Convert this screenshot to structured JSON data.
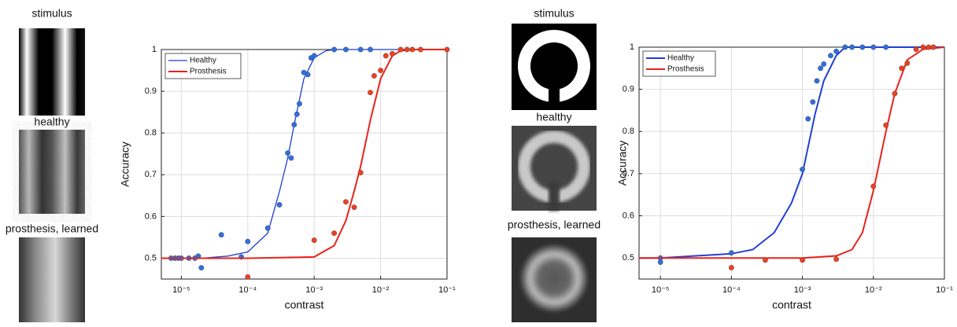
{
  "panels": [
    {
      "labels": [
        "stimulus",
        "healthy",
        "prosthesis, learned"
      ]
    },
    {
      "labels": [
        "stimulus",
        "healthy",
        "prosthesis, learned"
      ]
    }
  ],
  "chart_data": [
    {
      "type": "line",
      "xlabel": "contrast",
      "ylabel": "Accuracy",
      "xscale": "log",
      "xlim": [
        5e-06,
        0.1
      ],
      "ylim": [
        0.45,
        1.0
      ],
      "xticks": [
        {
          "value": 1e-05,
          "label": "10⁻⁵"
        },
        {
          "value": 0.0001,
          "label": "10⁻⁴"
        },
        {
          "value": 0.001,
          "label": "10⁻³"
        },
        {
          "value": 0.01,
          "label": "10⁻²"
        },
        {
          "value": 0.1,
          "label": "10⁻¹"
        }
      ],
      "yticks": [
        0.5,
        0.6,
        0.7,
        0.8,
        0.9,
        1
      ],
      "grid": true,
      "legend": "upper left",
      "series": [
        {
          "name": "Healthy",
          "color": "#1f3fd6",
          "linewidth": 1.3,
          "x": [
            5e-06,
            1e-05,
            2e-05,
            5e-05,
            0.0001,
            0.0002,
            0.0003,
            0.0004,
            0.0005,
            0.0007,
            0.001,
            0.0015,
            0.002,
            0.01,
            0.1
          ],
          "values": [
            0.5,
            0.5,
            0.5,
            0.505,
            0.515,
            0.56,
            0.66,
            0.74,
            0.82,
            0.93,
            0.98,
            0.997,
            1,
            1,
            1
          ],
          "points_x": [
            7e-06,
            8e-06,
            9e-06,
            1e-05,
            1.3e-05,
            1.6e-05,
            1.8e-05,
            2e-05,
            4e-05,
            8e-05,
            0.0001,
            0.0002,
            0.0003,
            0.0004,
            0.00045,
            0.0005,
            0.00055,
            0.0006,
            0.0007,
            0.0008,
            0.0009,
            0.001,
            0.002,
            0.003,
            0.005,
            0.007
          ],
          "points_values": [
            0.5,
            0.5,
            0.5,
            0.5,
            0.5,
            0.5,
            0.505,
            0.477,
            0.556,
            0.503,
            0.54,
            0.572,
            0.628,
            0.752,
            0.74,
            0.82,
            0.845,
            0.87,
            0.945,
            0.94,
            0.98,
            0.985,
            1,
            1,
            1,
            1
          ]
        },
        {
          "name": "Prosthesis",
          "color": "#e8231a",
          "linewidth": 2,
          "x": [
            5e-06,
            0.0001,
            0.001,
            0.002,
            0.003,
            0.004,
            0.005,
            0.006,
            0.007,
            0.01,
            0.015,
            0.02,
            0.03,
            0.1
          ],
          "values": [
            0.5,
            0.5,
            0.503,
            0.53,
            0.59,
            0.66,
            0.72,
            0.78,
            0.83,
            0.93,
            0.985,
            0.997,
            1,
            1
          ],
          "points_x": [
            0.0001,
            0.001,
            0.002,
            0.003,
            0.004,
            0.005,
            0.007,
            0.008,
            0.01,
            0.012,
            0.015,
            0.02,
            0.025,
            0.03,
            0.04,
            0.1
          ],
          "points_values": [
            0.455,
            0.543,
            0.56,
            0.635,
            0.622,
            0.705,
            0.897,
            0.937,
            0.95,
            0.985,
            0.99,
            1,
            1,
            1,
            1,
            1
          ]
        }
      ]
    },
    {
      "type": "line",
      "xlabel": "contrast",
      "ylabel": "Accuracy",
      "xscale": "log",
      "xlim": [
        5e-06,
        0.1
      ],
      "ylim": [
        0.45,
        1.0
      ],
      "xticks": [
        {
          "value": 1e-05,
          "label": "10⁻⁵"
        },
        {
          "value": 0.0001,
          "label": "10⁻⁴"
        },
        {
          "value": 0.001,
          "label": "10⁻³"
        },
        {
          "value": 0.01,
          "label": "10⁻²"
        },
        {
          "value": 0.1,
          "label": "10⁻¹"
        }
      ],
      "yticks": [
        0.5,
        0.6,
        0.7,
        0.8,
        0.9,
        1
      ],
      "grid": true,
      "legend": "upper left",
      "series": [
        {
          "name": "Healthy",
          "color": "#1f3fd6",
          "linewidth": 2,
          "x": [
            5e-06,
            1e-05,
            0.0001,
            0.0002,
            0.0004,
            0.0007,
            0.001,
            0.0015,
            0.002,
            0.003,
            0.004,
            0.1
          ],
          "values": [
            0.5,
            0.5,
            0.51,
            0.52,
            0.56,
            0.63,
            0.7,
            0.84,
            0.92,
            0.98,
            1,
            1
          ],
          "points_x": [
            1e-05,
            1e-05,
            0.0001,
            0.001,
            0.0012,
            0.0014,
            0.0016,
            0.0018,
            0.002,
            0.0025,
            0.003,
            0.004,
            0.005,
            0.007,
            0.01,
            0.015
          ],
          "points_values": [
            0.5,
            0.49,
            0.512,
            0.71,
            0.83,
            0.87,
            0.92,
            0.95,
            0.96,
            0.98,
            0.99,
            1,
            1,
            1,
            1,
            1
          ]
        },
        {
          "name": "Prosthesis",
          "color": "#e8231a",
          "linewidth": 2,
          "x": [
            5e-06,
            0.001,
            0.003,
            0.005,
            0.007,
            0.01,
            0.015,
            0.02,
            0.03,
            0.05,
            0.1
          ],
          "values": [
            0.5,
            0.5,
            0.505,
            0.52,
            0.56,
            0.66,
            0.8,
            0.89,
            0.97,
            0.995,
            1
          ],
          "points_x": [
            0.0001,
            0.0003,
            0.001,
            0.003,
            0.01,
            0.015,
            0.02,
            0.025,
            0.03,
            0.04,
            0.05,
            0.06,
            0.07
          ],
          "points_values": [
            0.477,
            0.495,
            0.495,
            0.497,
            0.67,
            0.815,
            0.89,
            0.95,
            0.962,
            0.995,
            1,
            1,
            1
          ]
        }
      ]
    }
  ]
}
